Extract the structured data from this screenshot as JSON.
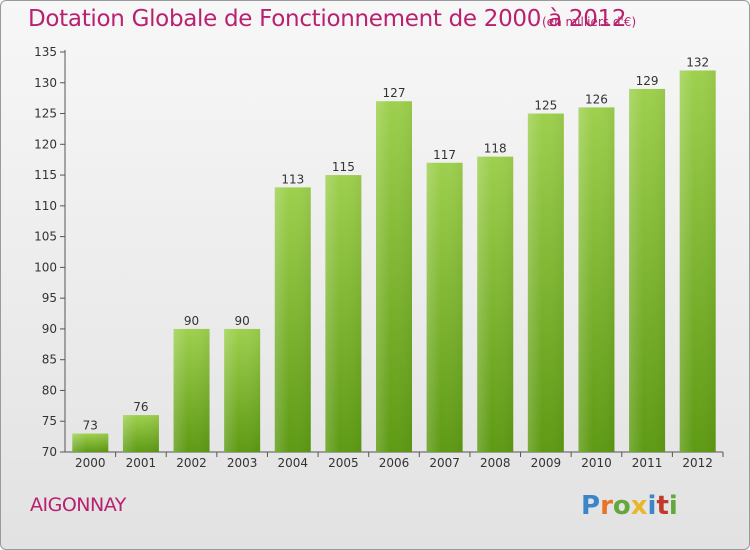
{
  "header": {
    "title": "Dotation Globale de Fonctionnement de 2000 à 2012",
    "unit": "(en milliers d'€)"
  },
  "footer": {
    "commune": "AIGONNAY",
    "logo": "Proxiti"
  },
  "colors": {
    "title": "#b8216f",
    "bar_light": "#9ed04e",
    "bar_dark": "#5e9a14",
    "axis_text": "#333333"
  },
  "chart_data": {
    "type": "bar",
    "title": "Dotation Globale de Fonctionnement de 2000 à 2012",
    "subtitle": "(en milliers d'€)",
    "xlabel": "",
    "ylabel": "",
    "categories": [
      "2000",
      "2001",
      "2002",
      "2003",
      "2004",
      "2005",
      "2006",
      "2007",
      "2008",
      "2009",
      "2010",
      "2011",
      "2012"
    ],
    "values": [
      73,
      76,
      90,
      90,
      113,
      115,
      127,
      117,
      118,
      125,
      126,
      129,
      132
    ],
    "ylim": [
      70,
      135
    ],
    "yticks": [
      70,
      75,
      80,
      85,
      90,
      95,
      100,
      105,
      110,
      115,
      120,
      125,
      130,
      135
    ],
    "grid": false,
    "legend": "none"
  }
}
